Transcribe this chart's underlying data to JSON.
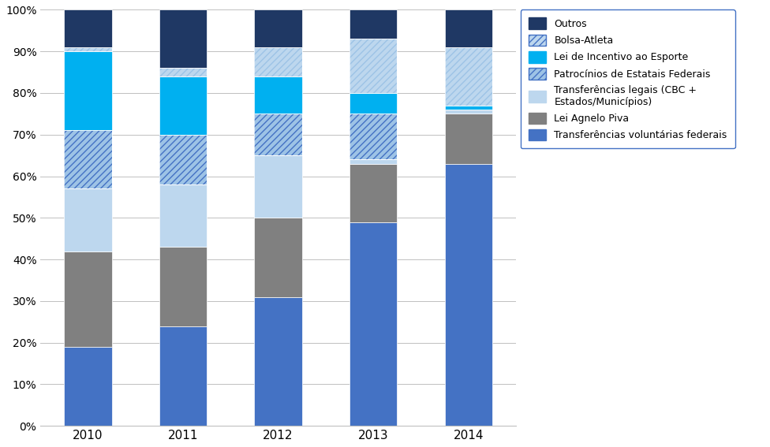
{
  "years": [
    "2010",
    "2011",
    "2012",
    "2013",
    "2014"
  ],
  "series_order": [
    "Transferências voluntárias federais",
    "Lei Agnelo Piva",
    "Transferências legais (CBC +\nEstados/Municípios)",
    "Patrocínios de Estatais Federais",
    "Lei de Incentivo ao Esporte",
    "Bolsa-Atleta",
    "Outros"
  ],
  "series": {
    "Transferências voluntárias federais": [
      19,
      24,
      31,
      49,
      63
    ],
    "Lei Agnelo Piva": [
      23,
      19,
      19,
      14,
      12
    ],
    "Transferências legais (CBC +\nEstados/Municípios)": [
      15,
      15,
      15,
      1,
      1
    ],
    "Patrocínios de Estatais Federais": [
      14,
      12,
      10,
      11,
      0
    ],
    "Lei de Incentivo ao Esporte": [
      19,
      14,
      9,
      5,
      1
    ],
    "Bolsa-Atleta": [
      1,
      2,
      7,
      13,
      14
    ],
    "Outros": [
      9,
      14,
      9,
      7,
      9
    ]
  },
  "colors": {
    "Transferências voluntárias federais": "#4472C4",
    "Lei Agnelo Piva": "#808080",
    "Transferências legais (CBC +\nEstados/Municípios)": "#BDD7EE",
    "Patrocínios de Estatais Federais": "#4472C4",
    "Lei de Incentivo ao Esporte": "#00B0F0",
    "Bolsa-Atleta": "#9DC3E6",
    "Outros": "#1F3864"
  },
  "facecolors": {
    "Transferências voluntárias federais": "#4472C4",
    "Lei Agnelo Piva": "#808080",
    "Transferências legais (CBC +\nEstados/Municípios)": "#BDD7EE",
    "Patrocínios de Estatais Federais": "#9DC3E6",
    "Lei de Incentivo ao Esporte": "#00B0F0",
    "Bolsa-Atleta": "#BDD7EE",
    "Outros": "#1F3864"
  },
  "hatches": {
    "Transferências voluntárias federais": "",
    "Lei Agnelo Piva": "",
    "Transferências legais (CBC +\nEstados/Municípios)": "",
    "Patrocínios de Estatais Federais": "////",
    "Lei de Incentivo ao Esporte": "",
    "Bolsa-Atleta": "////",
    "Outros": ""
  },
  "legend_order": [
    "Outros",
    "Bolsa-Atleta",
    "Lei de Incentivo ao Esporte",
    "Patrocínios de Estatais Federais",
    "Transferências legais (CBC +\nEstados/Municípios)",
    "Lei Agnelo Piva",
    "Transferências voluntárias federais"
  ],
  "bar_width": 0.5,
  "background_color": "#FFFFFF",
  "legend_facecolors": {
    "Outros": "#1F3864",
    "Bolsa-Atleta": "#BDD7EE",
    "Lei de Incentivo ao Esporte": "#00B0F0",
    "Patrocínios de Estatais Federais": "#9DC3E6",
    "Transferências legais (CBC +\nEstados/Municípios)": "#BDD7EE",
    "Lei Agnelo Piva": "#808080",
    "Transferências voluntárias federais": "#4472C4"
  },
  "legend_edgecolors": {
    "Outros": "#1F3864",
    "Bolsa-Atleta": "#4472C4",
    "Lei de Incentivo ao Esporte": "#00B0F0",
    "Patrocínios de Estatais Federais": "#4472C4",
    "Transferências legais (CBC +\nEstados/Municípios)": "#BDD7EE",
    "Lei Agnelo Piva": "#808080",
    "Transferências voluntárias federais": "#4472C4"
  },
  "legend_hatches": {
    "Outros": "",
    "Bolsa-Atleta": "////",
    "Lei de Incentivo ao Esporte": "",
    "Patrocínios de Estatais Federais": "////",
    "Transferências legais (CBC +\nEstados/Municípios)": "",
    "Lei Agnelo Piva": "",
    "Transferências voluntárias federais": ""
  }
}
